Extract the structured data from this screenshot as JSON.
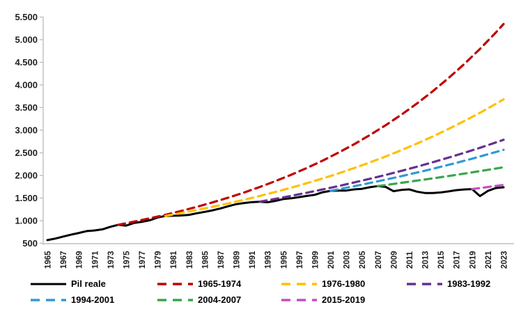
{
  "figure": {
    "background": "#FFFFFF",
    "axis_color": "#BFBFBF",
    "label_color": "#1F1F1F"
  },
  "chart_data": {
    "type": "line",
    "title": "",
    "xlabel": "",
    "ylabel": "",
    "grid": false,
    "legend_position": "bottom",
    "ylim": [
      500,
      5500
    ],
    "y_tick_step": 500,
    "y_tick_labels": [
      "500",
      "1.000",
      "1.500",
      "2.000",
      "2.500",
      "3.000",
      "3.500",
      "4.000",
      "4.500",
      "5.000",
      "5.500"
    ],
    "x_tick_labels": [
      "1965",
      "1967",
      "1969",
      "1971",
      "1973",
      "1975",
      "1977",
      "1979",
      "1981",
      "1983",
      "1985",
      "1987",
      "1989",
      "1991",
      "1993",
      "1995",
      "1997",
      "1999",
      "2001",
      "2003",
      "2005",
      "2007",
      "2009",
      "2011",
      "2013",
      "2015",
      "2017",
      "2019",
      "2021",
      "2023"
    ],
    "x_range": [
      1965,
      2023
    ],
    "series": [
      {
        "name": "Pil reale",
        "color": "#000000",
        "style": "solid",
        "x": [
          1965,
          1966,
          1967,
          1968,
          1969,
          1970,
          1971,
          1972,
          1973,
          1974,
          1975,
          1976,
          1977,
          1978,
          1979,
          1980,
          1981,
          1982,
          1983,
          1984,
          1985,
          1986,
          1987,
          1988,
          1989,
          1990,
          1991,
          1992,
          1993,
          1994,
          1995,
          1996,
          1997,
          1998,
          1999,
          2000,
          2001,
          2002,
          2003,
          2004,
          2005,
          2006,
          2007,
          2008,
          2009,
          2010,
          2011,
          2012,
          2013,
          2014,
          2015,
          2016,
          2017,
          2018,
          2019,
          2020,
          2021,
          2022,
          2023
        ],
        "values": [
          570,
          605,
          650,
          690,
          730,
          770,
          785,
          810,
          865,
          910,
          890,
          950,
          975,
          1010,
          1070,
          1105,
          1110,
          1115,
          1130,
          1165,
          1195,
          1230,
          1270,
          1320,
          1365,
          1390,
          1410,
          1420,
          1408,
          1438,
          1478,
          1495,
          1522,
          1548,
          1572,
          1630,
          1660,
          1664,
          1666,
          1692,
          1705,
          1740,
          1765,
          1748,
          1652,
          1680,
          1692,
          1642,
          1612,
          1612,
          1625,
          1647,
          1675,
          1690,
          1698,
          1545,
          1658,
          1722,
          1738
        ]
      },
      {
        "name": "1965-1974",
        "color": "#C00000",
        "style": "dashed",
        "x": [
          1974,
          1976,
          1978,
          1980,
          1982,
          1984,
          1986,
          1988,
          1990,
          1992,
          1994,
          1996,
          1998,
          2000,
          2002,
          2004,
          2006,
          2008,
          2010,
          2012,
          2014,
          2016,
          2018,
          2020,
          2022,
          2023
        ],
        "values": [
          910,
          978,
          1052,
          1130,
          1215,
          1306,
          1404,
          1509,
          1622,
          1744,
          1875,
          2015,
          2166,
          2328,
          2503,
          2690,
          2892,
          3109,
          3342,
          3592,
          3861,
          4151,
          4462,
          4796,
          5156,
          5346
        ]
      },
      {
        "name": "1976-1980",
        "color": "#FFC000",
        "style": "dashed",
        "x": [
          1980,
          1982,
          1984,
          1986,
          1988,
          1990,
          1992,
          1994,
          1996,
          1998,
          2000,
          2002,
          2004,
          2006,
          2008,
          2010,
          2012,
          2014,
          2016,
          2018,
          2020,
          2022,
          2023
        ],
        "values": [
          1105,
          1169,
          1236,
          1307,
          1382,
          1462,
          1546,
          1635,
          1729,
          1829,
          1934,
          2045,
          2163,
          2288,
          2419,
          2559,
          2706,
          2862,
          3027,
          3201,
          3385,
          3580,
          3682
        ]
      },
      {
        "name": "1983-1992",
        "color": "#67308F",
        "style": "dashed",
        "x": [
          1992,
          1994,
          1996,
          1998,
          2000,
          2002,
          2004,
          2006,
          2008,
          2010,
          2012,
          2014,
          2016,
          2018,
          2020,
          2022,
          2023
        ],
        "values": [
          1420,
          1483,
          1549,
          1618,
          1690,
          1765,
          1844,
          1926,
          2011,
          2101,
          2194,
          2292,
          2394,
          2500,
          2611,
          2727,
          2787
        ]
      },
      {
        "name": "1994-2001",
        "color": "#2E9BD6",
        "style": "dashed",
        "x": [
          2001,
          2003,
          2005,
          2007,
          2009,
          2011,
          2013,
          2015,
          2017,
          2019,
          2021,
          2023
        ],
        "values": [
          1660,
          1727,
          1797,
          1870,
          1945,
          2024,
          2105,
          2190,
          2279,
          2371,
          2467,
          2566
        ]
      },
      {
        "name": "2004-2007",
        "color": "#38A64A",
        "style": "dashed",
        "x": [
          2007,
          2009,
          2011,
          2013,
          2015,
          2017,
          2019,
          2021,
          2023
        ],
        "values": [
          1765,
          1812,
          1861,
          1911,
          1962,
          2014,
          2068,
          2124,
          2180
        ]
      },
      {
        "name": "2015-2019",
        "color": "#C44EC4",
        "style": "dashed",
        "x": [
          2019,
          2020,
          2021,
          2022,
          2023
        ],
        "values": [
          1698,
          1721,
          1744,
          1767,
          1790
        ]
      }
    ]
  }
}
